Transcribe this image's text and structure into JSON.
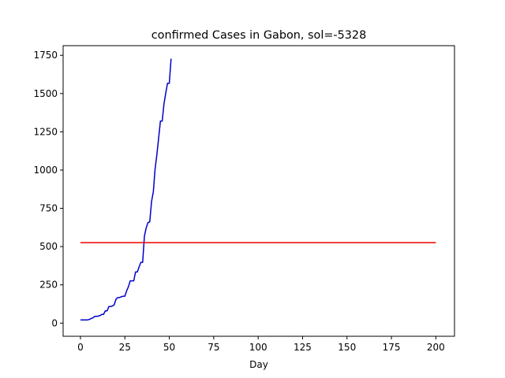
{
  "chart_data": {
    "type": "line",
    "title": "confirmed Cases in Gabon, sol=-5328",
    "xlabel": "Day",
    "ylabel": "",
    "xlim": [
      -9.75,
      210.5
    ],
    "ylim": [
      -86,
      1813
    ],
    "xticks": [
      0,
      25,
      50,
      75,
      100,
      125,
      150,
      175,
      200
    ],
    "yticks": [
      0,
      250,
      500,
      750,
      1000,
      1250,
      1500,
      1750
    ],
    "grid": false,
    "series": [
      {
        "color": "#0000cc",
        "x": [
          0,
          1,
          2,
          3,
          4,
          5,
          6,
          7,
          8,
          9,
          10,
          11,
          12,
          13,
          14,
          15,
          16,
          17,
          18,
          19,
          20,
          21,
          22,
          23,
          24,
          25,
          26,
          27,
          28,
          29,
          30,
          31,
          32,
          33,
          34,
          35,
          36,
          37,
          38,
          39,
          40,
          41,
          42,
          43,
          44,
          45,
          46,
          47,
          48,
          49,
          50,
          51
        ],
        "y": [
          21,
          21,
          21,
          21,
          21,
          24,
          30,
          34,
          44,
          44,
          46,
          49,
          57,
          57,
          80,
          80,
          108,
          108,
          112,
          120,
          156,
          167,
          167,
          172,
          176,
          176,
          211,
          238,
          276,
          276,
          276,
          334,
          334,
          367,
          397,
          397,
          570,
          622,
          657,
          661,
          794,
          857,
          1007,
          1100,
          1209,
          1320,
          1320,
          1432,
          1502,
          1567,
          1567,
          1728
        ]
      },
      {
        "color": "#ee0000",
        "x": [
          0,
          200
        ],
        "y": [
          526,
          526
        ]
      }
    ]
  }
}
